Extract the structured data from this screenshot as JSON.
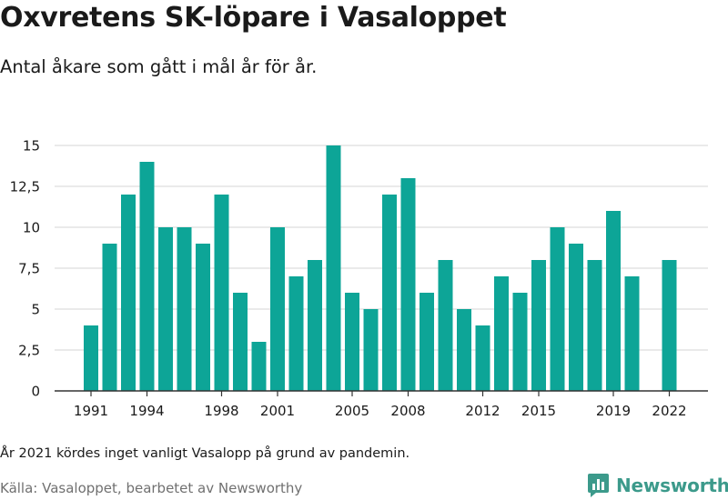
{
  "title": "Oxvretens SK-löpare i Vasaloppet",
  "subtitle": "Antal åkare som gått i mål år för år.",
  "note": "År 2021 kördes inget vanligt Vasalopp på grund av pandemin.",
  "source": "Källa: Vasaloppet, bearbetet av Newsworthy",
  "logo": {
    "text": "Newsworthy",
    "icon": "newsworthy-logo-icon",
    "color": "#3c9a8b"
  },
  "colors": {
    "bar": "#0da597",
    "grid": "#dddddd",
    "axis": "#333333"
  },
  "chart_data": {
    "type": "bar",
    "x": [
      1991,
      1992,
      1993,
      1994,
      1995,
      1996,
      1997,
      1998,
      1999,
      2000,
      2001,
      2002,
      2003,
      2004,
      2005,
      2006,
      2007,
      2008,
      2009,
      2010,
      2011,
      2012,
      2013,
      2014,
      2015,
      2016,
      2017,
      2018,
      2019,
      2020,
      2021,
      2022
    ],
    "values": [
      4,
      9,
      12,
      14,
      10,
      10,
      9,
      12,
      6,
      3,
      10,
      7,
      8,
      15,
      6,
      5,
      12,
      13,
      6,
      8,
      5,
      4,
      7,
      6,
      8,
      10,
      9,
      8,
      11,
      7,
      null,
      8
    ],
    "xticks": [
      1991,
      1994,
      1998,
      2001,
      2005,
      2008,
      2012,
      2015,
      2019,
      2022
    ],
    "yticks": [
      0,
      2.5,
      5,
      7.5,
      10,
      12.5,
      15
    ],
    "ytick_labels": [
      "0",
      "2,5",
      "5",
      "7,5",
      "10",
      "12,5",
      "15"
    ],
    "ylim": [
      0,
      15
    ],
    "xlabel": "",
    "ylabel": "",
    "grid": "horizontal"
  }
}
